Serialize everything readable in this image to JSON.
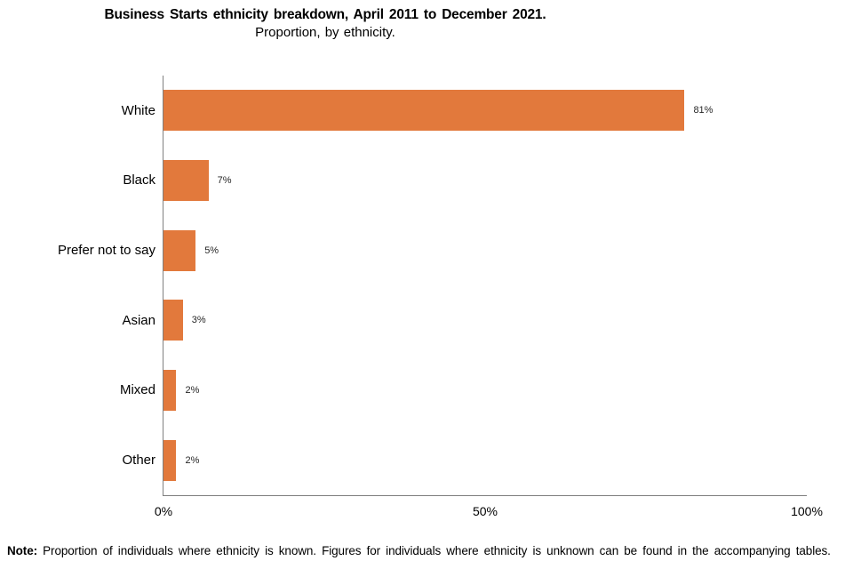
{
  "title": "Business Starts ethnicity breakdown, April 2011 to December 2021.",
  "subtitle": "Proportion, by ethnicity.",
  "note": {
    "label": "Note:",
    "text": " Proportion of individuals where ethnicity is known. Figures for individuals where ethnicity is unknown can be found in the accompanying tables."
  },
  "colors": {
    "bar": "#e2793c",
    "axis": "#7f7f7f",
    "value_label_text": "#262626"
  },
  "chart_data": {
    "type": "bar",
    "orientation": "horizontal",
    "title": "Business Starts ethnicity breakdown, April 2011 to December 2021.",
    "subtitle": "Proportion, by ethnicity.",
    "categories": [
      "White",
      "Black",
      "Prefer not to say",
      "Asian",
      "Mixed",
      "Other"
    ],
    "values": [
      81,
      7,
      5,
      3,
      2,
      2
    ],
    "value_labels": [
      "81%",
      "7%",
      "5%",
      "3%",
      "2%",
      "2%"
    ],
    "xlabel": "",
    "ylabel": "",
    "xlim": [
      0,
      100
    ],
    "x_ticks": [
      {
        "label": "0%",
        "position": 0
      },
      {
        "label": "50%",
        "position": 50
      },
      {
        "label": "100%",
        "position": 100
      }
    ],
    "grid": false,
    "legend": false
  }
}
